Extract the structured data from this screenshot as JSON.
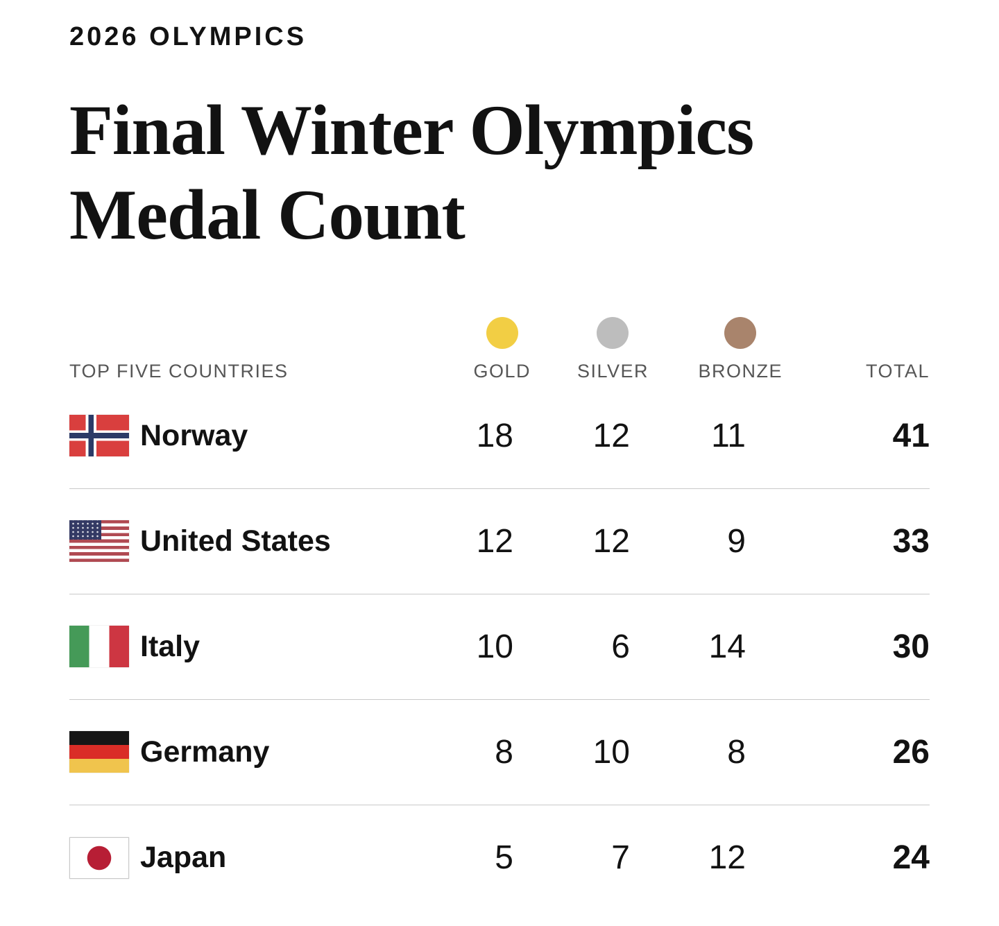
{
  "kicker": "2026 OLYMPICS",
  "headline": {
    "lines": [
      "Final Winter Olympics",
      "Medal Count"
    ]
  },
  "table": {
    "country_header": "TOP FIVE COUNTRIES",
    "columns": [
      {
        "label": "GOLD",
        "circle_color": "#f2ce44"
      },
      {
        "label": "SILVER",
        "circle_color": "#bdbdbd"
      },
      {
        "label": "BRONZE",
        "circle_color": "#a9846c"
      }
    ],
    "total_header": "TOTAL",
    "rows": [
      {
        "country": "Norway",
        "flag": "norway-flag",
        "gold": 18,
        "silver": 12,
        "bronze": 11,
        "total": 41
      },
      {
        "country": "United States",
        "flag": "us-flag",
        "gold": 12,
        "silver": 12,
        "bronze": 9,
        "total": 33
      },
      {
        "country": "Italy",
        "flag": "italy-flag",
        "gold": 10,
        "silver": 6,
        "bronze": 14,
        "total": 30
      },
      {
        "country": "Germany",
        "flag": "germany-flag",
        "gold": 8,
        "silver": 10,
        "bronze": 8,
        "total": 26
      },
      {
        "country": "Japan",
        "flag": "japan-flag",
        "gold": 5,
        "silver": 7,
        "bronze": 12,
        "total": 24
      }
    ]
  },
  "colors": {
    "gold_circle": "#f2ce44",
    "silver_circle": "#bdbdbd",
    "bronze_circle": "#a9846c",
    "divider": "#c9c9c9",
    "header_text": "#565656",
    "text": "#121212",
    "background": "#ffffff"
  },
  "chart_data": {
    "type": "table",
    "title": "Final Winter Olympics Medal Count",
    "kicker": "2026 Olympics",
    "categories": [
      "Norway",
      "United States",
      "Italy",
      "Germany",
      "Japan"
    ],
    "series": [
      {
        "name": "Gold",
        "values": [
          18,
          12,
          10,
          8,
          5
        ]
      },
      {
        "name": "Silver",
        "values": [
          12,
          12,
          6,
          10,
          7
        ]
      },
      {
        "name": "Bronze",
        "values": [
          11,
          9,
          14,
          8,
          12
        ]
      },
      {
        "name": "Total",
        "values": [
          41,
          33,
          30,
          26,
          24
        ]
      }
    ],
    "legend_position": "column headers with medal color dots",
    "grid": "horizontal row dividers only"
  }
}
